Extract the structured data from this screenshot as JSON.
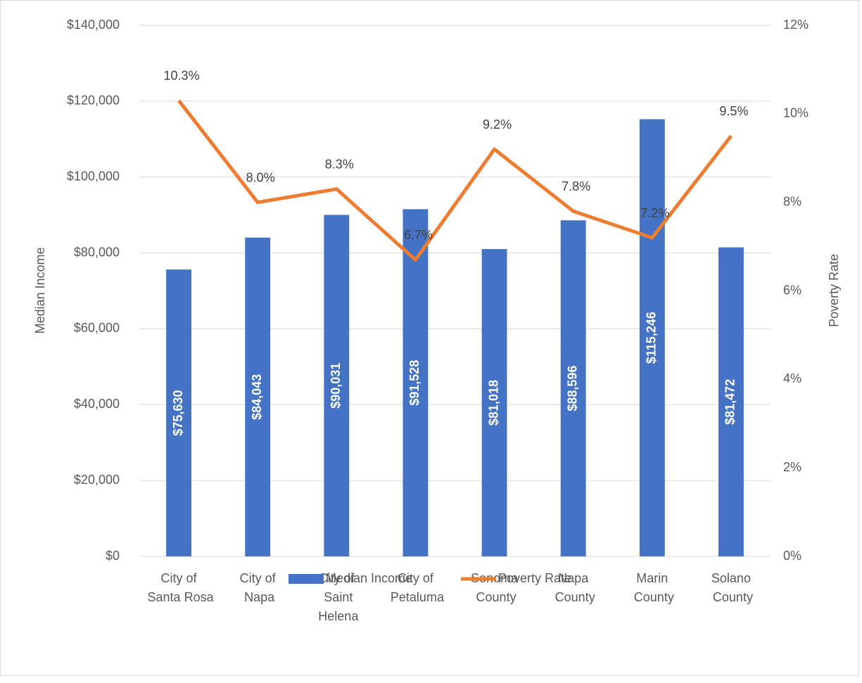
{
  "chart_data": {
    "type": "bar-line",
    "categories": [
      "City of Santa Rosa",
      "City of Napa",
      "City of Saint Helena",
      "City of Petaluma",
      "Sonoma County",
      "Napa County",
      "Marin County",
      "Solano County"
    ],
    "series": [
      {
        "name": "Median Income",
        "color": "#4472c4",
        "type": "bar",
        "values": [
          75630,
          84043,
          90031,
          91528,
          81018,
          88596,
          115246,
          81472
        ],
        "value_labels": [
          "$75,630",
          "$84,043",
          "$90,031",
          "$91,528",
          "$81,018",
          "$88,596",
          "$115,246",
          "$81,472"
        ]
      },
      {
        "name": "Poverty Rate",
        "color": "#ed7d31",
        "type": "line",
        "axis": "y2",
        "values": [
          10.3,
          8.0,
          8.3,
          6.7,
          9.2,
          7.8,
          7.2,
          9.5
        ],
        "value_labels": [
          "10.3%",
          "8.0%",
          "8.3%",
          "6.7%",
          "9.2%",
          "7.8%",
          "7.2%",
          "9.5%"
        ]
      }
    ],
    "ylabel": "Median Income",
    "y2label": "Poverty Rate",
    "ylim": [
      0,
      140000
    ],
    "yticks": [
      {
        "value": 0,
        "label": "$0"
      },
      {
        "value": 20000,
        "label": "$20,000"
      },
      {
        "value": 40000,
        "label": "$40,000"
      },
      {
        "value": 60000,
        "label": "$60,000"
      },
      {
        "value": 80000,
        "label": "$80,000"
      },
      {
        "value": 100000,
        "label": "$100,000"
      },
      {
        "value": 120000,
        "label": "$120,000"
      },
      {
        "value": 140000,
        "label": "$140,000"
      }
    ],
    "y2lim": [
      0,
      12
    ],
    "y2ticks": [
      {
        "value": 0,
        "label": "0%"
      },
      {
        "value": 2,
        "label": "2%"
      },
      {
        "value": 4,
        "label": "4%"
      },
      {
        "value": 6,
        "label": "6%"
      },
      {
        "value": 8,
        "label": "8%"
      },
      {
        "value": 10,
        "label": "10%"
      },
      {
        "value": 12,
        "label": "12%"
      }
    ],
    "grid": true,
    "legend": "bottom"
  }
}
